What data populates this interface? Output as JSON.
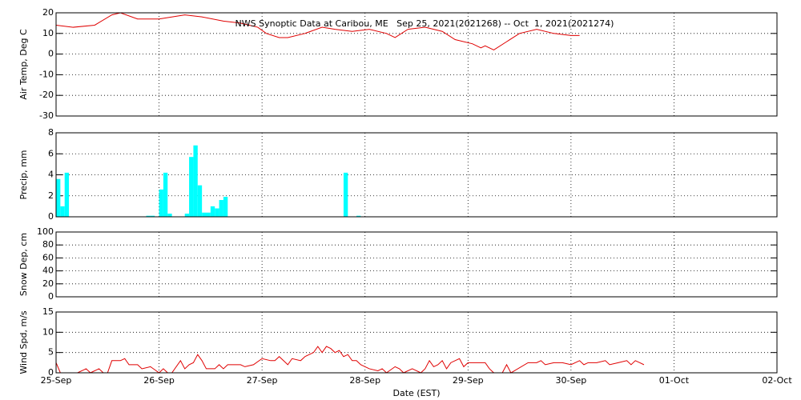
{
  "chart_data": [
    {
      "type": "line",
      "title": "NWS Synoptic Data at Caribou, ME   Sep 25, 2021(2021268) -- Oct  1, 2021(2021274)",
      "ylabel": "Air Temp, Deg C",
      "ylim": [
        -30,
        20
      ],
      "yticks": [
        -30,
        -20,
        -10,
        0,
        10,
        20
      ],
      "color": "#e00000",
      "x": [
        0,
        4,
        9,
        13,
        15,
        19,
        24,
        30,
        34,
        39,
        43,
        47,
        49,
        52,
        54,
        58,
        62,
        65,
        69,
        73,
        77,
        79,
        82,
        86,
        90,
        93,
        97,
        99,
        100,
        102,
        105,
        108,
        112,
        116,
        120,
        122
      ],
      "values": [
        14,
        13,
        14,
        19,
        20,
        17,
        17,
        19,
        18,
        16,
        15,
        13,
        10,
        8,
        8,
        10,
        13,
        12,
        11,
        12,
        10,
        8,
        12,
        13,
        11,
        7,
        5,
        3,
        4,
        2,
        6,
        10,
        12,
        10,
        9,
        9
      ]
    },
    {
      "type": "bar",
      "ylabel": "Precip, mm",
      "ylim": [
        0,
        8
      ],
      "yticks": [
        0,
        2,
        4,
        6,
        8
      ],
      "color": "#00ffff",
      "x": [
        0,
        1,
        2,
        21,
        22,
        24,
        25,
        26,
        30,
        31,
        32,
        33,
        34,
        35,
        36,
        37,
        38,
        39,
        67,
        70
      ],
      "values": [
        3.6,
        1,
        4.2,
        0.1,
        0.1,
        2.6,
        4.2,
        0.3,
        0.3,
        5.7,
        6.8,
        3,
        0.4,
        0.4,
        1,
        0.8,
        1.6,
        1.9,
        4.2,
        0.1
      ]
    },
    {
      "type": "line",
      "ylabel": "Snow Dep, cm",
      "ylim": [
        0,
        100
      ],
      "yticks": [
        0,
        20,
        40,
        60,
        80,
        100
      ]
    },
    {
      "type": "line",
      "ylabel": "Wind Spd, m/s",
      "ylim": [
        0,
        15
      ],
      "yticks": [
        0,
        5,
        10,
        15
      ],
      "color": "#e00000",
      "xlabel": "Date (EST)",
      "xlim": [
        0,
        168
      ],
      "xticks": [
        {
          "value": 0,
          "label": "25-Sep"
        },
        {
          "value": 24,
          "label": "26-Sep"
        },
        {
          "value": 48,
          "label": "27-Sep"
        },
        {
          "value": 72,
          "label": "28-Sep"
        },
        {
          "value": 96,
          "label": "29-Sep"
        },
        {
          "value": 120,
          "label": "30-Sep"
        },
        {
          "value": 144,
          "label": "01-Oct"
        },
        {
          "value": 168,
          "label": "02-Oct"
        }
      ],
      "x": [
        0,
        1,
        2,
        5,
        7,
        8,
        10,
        11,
        12,
        13,
        15,
        16,
        17,
        19,
        20,
        22,
        24,
        25,
        26,
        27,
        29,
        30,
        31,
        32,
        33,
        34,
        35,
        37,
        38,
        39,
        40,
        41,
        43,
        44,
        46,
        48,
        50,
        51,
        52,
        53,
        54,
        55,
        57,
        58,
        59,
        60,
        61,
        62,
        63,
        64,
        65,
        66,
        67,
        68,
        69,
        70,
        71,
        73,
        75,
        76,
        77,
        79,
        80,
        81,
        83,
        84,
        85,
        86,
        87,
        88,
        89,
        90,
        91,
        92,
        94,
        95,
        96,
        98,
        100,
        101,
        102,
        104,
        105,
        106,
        110,
        112,
        113,
        114,
        116,
        118,
        120,
        122,
        123,
        124,
        126,
        128,
        129,
        131,
        133,
        134,
        135,
        136,
        137
      ],
      "values": [
        2.5,
        0,
        0,
        0,
        1,
        0,
        1,
        0,
        0,
        3,
        3,
        3.5,
        2,
        2,
        1,
        1.5,
        0,
        1,
        0,
        0,
        3,
        1,
        2,
        2.5,
        4.5,
        3,
        1,
        1,
        2,
        1,
        2,
        2,
        2,
        1.5,
        2,
        3.5,
        3,
        3,
        4,
        3,
        2,
        3.5,
        3,
        4,
        4.5,
        5,
        6.5,
        5,
        6.5,
        6,
        5,
        5.5,
        4,
        4.5,
        3,
        3,
        2,
        1,
        0.5,
        1,
        0,
        1.5,
        1,
        0,
        1,
        0.5,
        0,
        1,
        3,
        1.5,
        2,
        3,
        1,
        2.5,
        3.5,
        1.5,
        2.5,
        2.5,
        2.5,
        1,
        0,
        0,
        2,
        0,
        2.5,
        2.5,
        3,
        2,
        2.5,
        2.5,
        2,
        3,
        2,
        2.5,
        2.5,
        3,
        2,
        2.5,
        3,
        2,
        3,
        2.5,
        2
      ]
    }
  ]
}
